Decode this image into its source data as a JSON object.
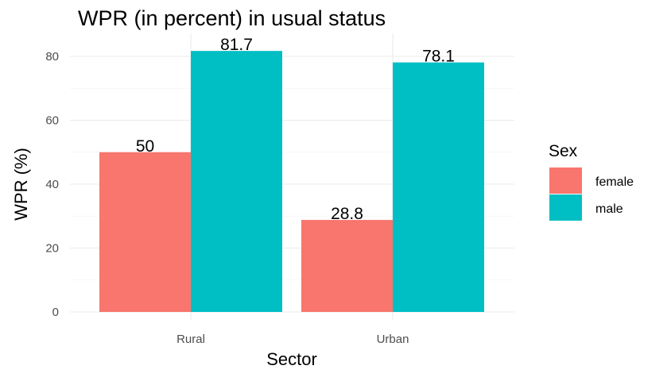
{
  "chart_data": {
    "type": "bar",
    "title": "WPR (in percent) in usual status",
    "xlabel": "Sector",
    "ylabel": "WPR (%)",
    "categories": [
      "Rural",
      "Urban"
    ],
    "series": [
      {
        "name": "female",
        "values": [
          50,
          28.8
        ],
        "labels": [
          "50",
          "28.8"
        ],
        "color": "#F8766D"
      },
      {
        "name": "male",
        "values": [
          81.7,
          78.1
        ],
        "labels": [
          "81.7",
          "78.1"
        ],
        "color": "#00BFC4"
      }
    ],
    "ylim": [
      0,
      85
    ],
    "yticks": [
      0,
      20,
      40,
      60,
      80
    ],
    "grid": true,
    "legend": {
      "title": "Sex",
      "placement": "right"
    }
  }
}
